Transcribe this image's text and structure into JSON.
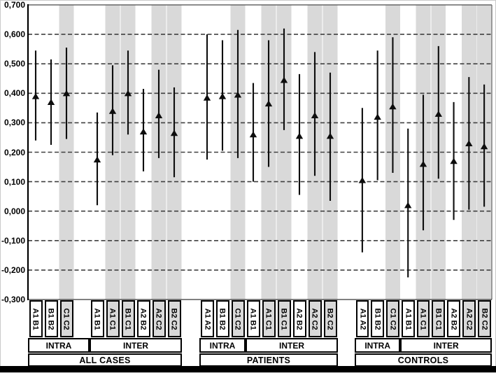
{
  "figure": {
    "background": "#ffffff",
    "band_color": "#d9d9d9",
    "marker_color": "#0d0d0d",
    "gridline_color": "#404040"
  },
  "chart_data": {
    "type": "scatter",
    "marker": "triangle-up",
    "error_bars": true,
    "title": "",
    "xlabel": "",
    "ylabel": "",
    "ylim": [
      -0.3,
      0.7
    ],
    "ytick_step": 0.1,
    "grid": "horizontal-dashed",
    "legend": "none",
    "y_tick_labels": [
      "0,700",
      "0,600",
      "0,500",
      "0,400",
      "0,300",
      "0,200",
      "0,100",
      "0,000",
      "-0,100",
      "-0,200",
      "-0,300"
    ],
    "groups": [
      {
        "label": "ALL CASES",
        "gap_between_sections": true,
        "sections": [
          {
            "label": "INTRA",
            "columns": [
              {
                "label": "A1 B1",
                "shaded": false,
                "mean": 0.39,
                "ci_low": 0.24,
                "ci_high": 0.545
              },
              {
                "label": "B1 B2",
                "shaded": false,
                "mean": 0.37,
                "ci_low": 0.225,
                "ci_high": 0.515
              },
              {
                "label": "C1 C2",
                "shaded": true,
                "mean": 0.4,
                "ci_low": 0.245,
                "ci_high": 0.555
              }
            ]
          },
          {
            "label": "INTER",
            "columns": [
              {
                "label": "A1 B1",
                "shaded": false,
                "mean": 0.175,
                "ci_low": 0.02,
                "ci_high": 0.335
              },
              {
                "label": "A1 C1",
                "shaded": true,
                "mean": 0.34,
                "ci_low": 0.19,
                "ci_high": 0.495
              },
              {
                "label": "B1 C1",
                "shaded": true,
                "mean": 0.4,
                "ci_low": 0.26,
                "ci_high": 0.545
              },
              {
                "label": "A2 B2",
                "shaded": false,
                "mean": 0.27,
                "ci_low": 0.135,
                "ci_high": 0.415
              },
              {
                "label": "A2 C2",
                "shaded": true,
                "mean": 0.325,
                "ci_low": 0.18,
                "ci_high": 0.48
              },
              {
                "label": "B2 C2",
                "shaded": true,
                "mean": 0.265,
                "ci_low": 0.115,
                "ci_high": 0.42
              }
            ]
          }
        ]
      },
      {
        "label": "PATIENTS",
        "gap_between_sections": false,
        "sections": [
          {
            "label": "INTRA",
            "columns": [
              {
                "label": "A1 A2",
                "shaded": false,
                "mean": 0.385,
                "ci_low": 0.175,
                "ci_high": 0.6
              },
              {
                "label": "B1 B2",
                "shaded": false,
                "mean": 0.39,
                "ci_low": 0.205,
                "ci_high": 0.58
              },
              {
                "label": "C1 C2",
                "shaded": true,
                "mean": 0.395,
                "ci_low": 0.18,
                "ci_high": 0.615
              }
            ]
          },
          {
            "label": "INTER",
            "columns": [
              {
                "label": "A1 B1",
                "shaded": false,
                "mean": 0.26,
                "ci_low": 0.1,
                "ci_high": 0.435
              },
              {
                "label": "A1 C1",
                "shaded": true,
                "mean": 0.365,
                "ci_low": 0.15,
                "ci_high": 0.58
              },
              {
                "label": "B1 C1",
                "shaded": true,
                "mean": 0.445,
                "ci_low": 0.275,
                "ci_high": 0.62
              },
              {
                "label": "A2 B2",
                "shaded": false,
                "mean": 0.255,
                "ci_low": 0.055,
                "ci_high": 0.465
              },
              {
                "label": "A2 C2",
                "shaded": true,
                "mean": 0.325,
                "ci_low": 0.12,
                "ci_high": 0.54
              },
              {
                "label": "B2 C2",
                "shaded": true,
                "mean": 0.255,
                "ci_low": 0.035,
                "ci_high": 0.47
              }
            ]
          }
        ]
      },
      {
        "label": "CONTROLS",
        "gap_between_sections": false,
        "sections": [
          {
            "label": "INTRA",
            "columns": [
              {
                "label": "A1 A2",
                "shaded": false,
                "mean": 0.105,
                "ci_low": -0.14,
                "ci_high": 0.35
              },
              {
                "label": "B1 B2",
                "shaded": false,
                "mean": 0.32,
                "ci_low": 0.105,
                "ci_high": 0.545
              },
              {
                "label": "C1 C2",
                "shaded": true,
                "mean": 0.355,
                "ci_low": 0.13,
                "ci_high": 0.59
              }
            ]
          },
          {
            "label": "INTER",
            "columns": [
              {
                "label": "A1 B1",
                "shaded": false,
                "mean": 0.02,
                "ci_low": -0.225,
                "ci_high": 0.28
              },
              {
                "label": "A1 C1",
                "shaded": true,
                "mean": 0.16,
                "ci_low": -0.065,
                "ci_high": 0.395
              },
              {
                "label": "B1 C1",
                "shaded": true,
                "mean": 0.33,
                "ci_low": 0.11,
                "ci_high": 0.56
              },
              {
                "label": "A2 B2",
                "shaded": false,
                "mean": 0.17,
                "ci_low": -0.03,
                "ci_high": 0.37
              },
              {
                "label": "A2 C2",
                "shaded": true,
                "mean": 0.23,
                "ci_low": 0.005,
                "ci_high": 0.455
              },
              {
                "label": "B2 C2",
                "shaded": true,
                "mean": 0.22,
                "ci_low": 0.015,
                "ci_high": 0.43
              }
            ]
          }
        ]
      }
    ]
  }
}
